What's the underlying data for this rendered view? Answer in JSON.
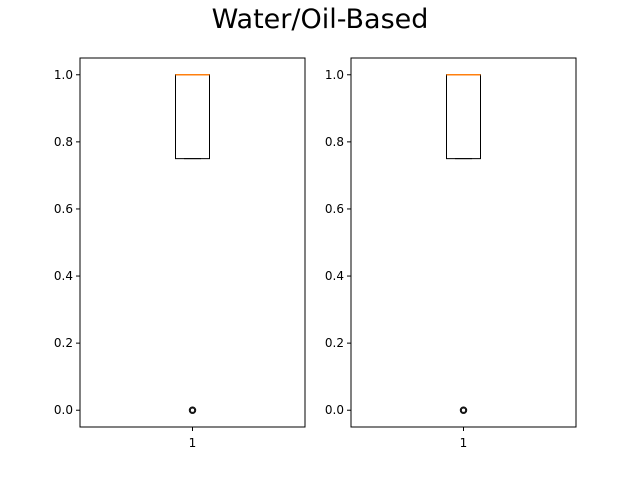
{
  "figure": {
    "title": "Water/Oil-Based"
  },
  "chart_data": [
    {
      "type": "boxplot",
      "xticks": [
        "1"
      ],
      "yticks": [
        "0.0",
        "0.2",
        "0.4",
        "0.6",
        "0.8",
        "1.0"
      ],
      "ylim": [
        -0.05,
        1.05
      ],
      "grid": false,
      "boxes": [
        {
          "position": 1,
          "q1": 0.75,
          "median": 1.0,
          "q3": 1.0,
          "whisker_low": 0.75,
          "whisker_high": 1.0,
          "outliers": [
            0.0
          ]
        }
      ]
    },
    {
      "type": "boxplot",
      "xticks": [
        "1"
      ],
      "yticks": [
        "0.0",
        "0.2",
        "0.4",
        "0.6",
        "0.8",
        "1.0"
      ],
      "ylim": [
        -0.05,
        1.05
      ],
      "grid": false,
      "boxes": [
        {
          "position": 1,
          "q1": 0.75,
          "median": 1.0,
          "q3": 1.0,
          "whisker_low": 0.75,
          "whisker_high": 1.0,
          "outliers": [
            0.0
          ]
        }
      ]
    }
  ],
  "colors": {
    "box": "#000000",
    "median": "#ff7f0e",
    "axes": "#000000"
  }
}
